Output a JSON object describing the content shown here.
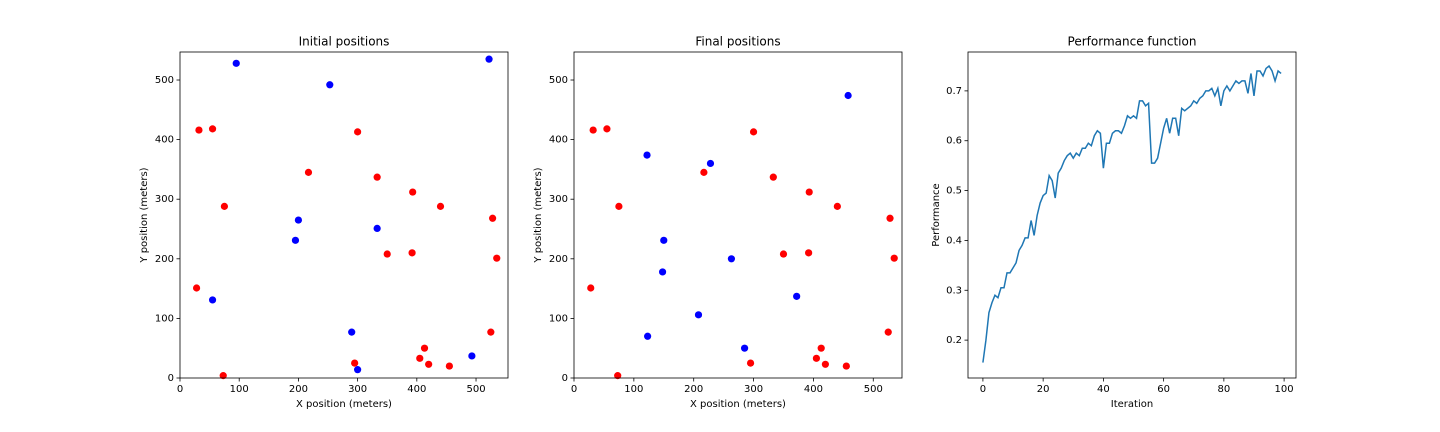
{
  "chart_data": [
    {
      "type": "scatter",
      "title": "Initial positions",
      "x_label": "X position (meters)",
      "y_label": "Y position (meters)",
      "xlim": [
        0,
        554
      ],
      "ylim": [
        0,
        547
      ],
      "xticks": [
        0,
        100,
        200,
        300,
        400,
        500
      ],
      "yticks": [
        0,
        100,
        200,
        300,
        400,
        500
      ],
      "series": [
        {
          "color": "#ff0000",
          "x": [
            32,
            55,
            75,
            28,
            73,
            217,
            300,
            333,
            350,
            393,
            392,
            440,
            528,
            535,
            525,
            413,
            405,
            420,
            455,
            295
          ],
          "values": [
            416,
            418,
            288,
            151,
            4,
            345,
            413,
            337,
            208,
            312,
            210,
            288,
            268,
            201,
            77,
            50,
            33,
            23,
            20,
            25
          ]
        },
        {
          "color": "#0000ff",
          "x": [
            95,
            253,
            200,
            195,
            333,
            55,
            290,
            300,
            493,
            522
          ],
          "values": [
            528,
            492,
            265,
            231,
            251,
            131,
            77,
            14,
            37,
            535
          ]
        }
      ]
    },
    {
      "type": "scatter",
      "title": "Final positions",
      "x_label": "X position (meters)",
      "y_label": "Y position (meters)",
      "xlim": [
        0,
        548
      ],
      "ylim": [
        0,
        547
      ],
      "xticks": [
        0,
        100,
        200,
        300,
        400,
        500
      ],
      "yticks": [
        0,
        100,
        200,
        300,
        400,
        500
      ],
      "series": [
        {
          "color": "#ff0000",
          "x": [
            32,
            55,
            75,
            28,
            73,
            217,
            300,
            333,
            350,
            393,
            392,
            440,
            528,
            535,
            525,
            413,
            405,
            420,
            455,
            295
          ],
          "values": [
            416,
            418,
            288,
            151,
            4,
            345,
            413,
            337,
            208,
            312,
            210,
            288,
            268,
            201,
            77,
            50,
            33,
            23,
            20,
            25
          ]
        },
        {
          "color": "#0000ff",
          "x": [
            458,
            122,
            228,
            150,
            148,
            263,
            372,
            208,
            123,
            285
          ],
          "values": [
            474,
            374,
            360,
            231,
            178,
            200,
            137,
            106,
            70,
            50
          ]
        }
      ]
    },
    {
      "type": "line",
      "title": "Performance function",
      "x_label": "Iteration",
      "y_label": "Performance",
      "xlim": [
        -4.95,
        103.95
      ],
      "ylim": [
        0.124,
        0.778
      ],
      "xticks": [
        0,
        20,
        40,
        60,
        80,
        100
      ],
      "yticks": [
        0.2,
        0.3,
        0.4,
        0.5,
        0.6,
        0.7
      ],
      "series": [
        {
          "color": "#1f77b4",
          "x": [
            0,
            1,
            2,
            3,
            4,
            5,
            6,
            7,
            8,
            9,
            10,
            11,
            12,
            13,
            14,
            15,
            16,
            17,
            18,
            19,
            20,
            21,
            22,
            23,
            24,
            25,
            26,
            27,
            28,
            29,
            30,
            31,
            32,
            33,
            34,
            35,
            36,
            37,
            38,
            39,
            40,
            41,
            42,
            43,
            44,
            45,
            46,
            47,
            48,
            49,
            50,
            51,
            52,
            53,
            54,
            55,
            56,
            57,
            58,
            59,
            60,
            61,
            62,
            63,
            64,
            65,
            66,
            67,
            68,
            69,
            70,
            71,
            72,
            73,
            74,
            75,
            76,
            77,
            78,
            79,
            80,
            81,
            82,
            83,
            84,
            85,
            86,
            87,
            88,
            89,
            90,
            91,
            92,
            93,
            94,
            95,
            96,
            97,
            98,
            99
          ],
          "values": [
            0.155,
            0.2,
            0.255,
            0.275,
            0.29,
            0.285,
            0.305,
            0.305,
            0.335,
            0.335,
            0.345,
            0.355,
            0.38,
            0.39,
            0.405,
            0.405,
            0.44,
            0.41,
            0.45,
            0.475,
            0.49,
            0.495,
            0.53,
            0.52,
            0.485,
            0.535,
            0.545,
            0.56,
            0.57,
            0.575,
            0.565,
            0.575,
            0.57,
            0.585,
            0.585,
            0.595,
            0.59,
            0.61,
            0.62,
            0.615,
            0.545,
            0.595,
            0.595,
            0.615,
            0.62,
            0.62,
            0.615,
            0.63,
            0.65,
            0.645,
            0.65,
            0.645,
            0.68,
            0.68,
            0.67,
            0.675,
            0.555,
            0.555,
            0.565,
            0.595,
            0.625,
            0.645,
            0.615,
            0.645,
            0.645,
            0.61,
            0.665,
            0.66,
            0.665,
            0.67,
            0.68,
            0.675,
            0.685,
            0.69,
            0.7,
            0.7,
            0.705,
            0.69,
            0.705,
            0.67,
            0.7,
            0.71,
            0.7,
            0.71,
            0.72,
            0.715,
            0.72,
            0.72,
            0.695,
            0.735,
            0.69,
            0.74,
            0.74,
            0.73,
            0.745,
            0.75,
            0.74,
            0.72,
            0.74,
            0.735
          ]
        }
      ]
    }
  ]
}
